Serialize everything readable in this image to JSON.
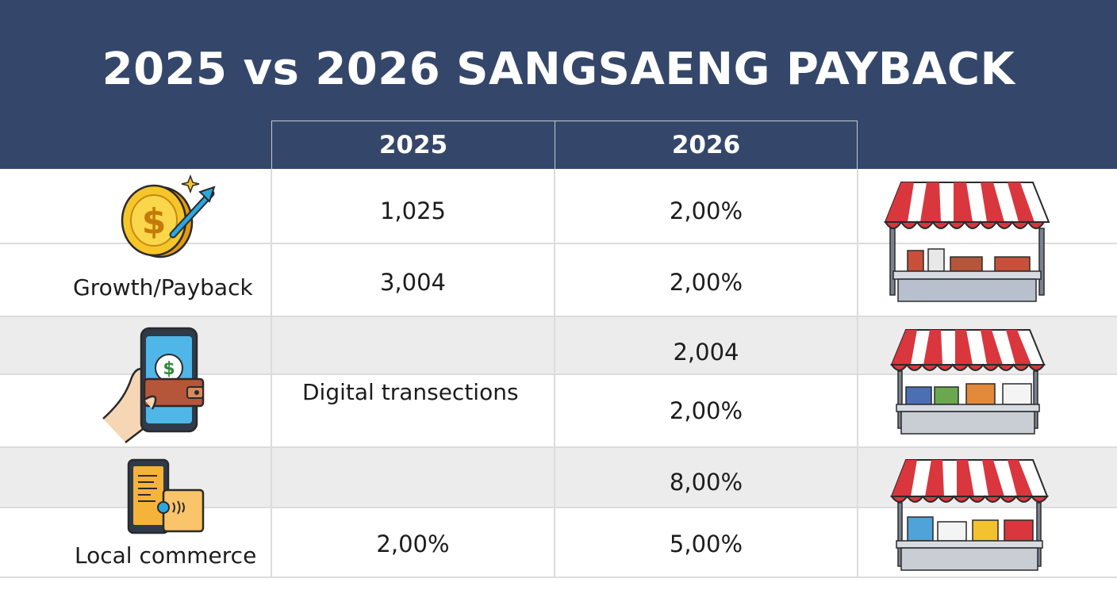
{
  "title": "2025 vs 2026 SANGSAENG PAYBACK",
  "columns": {
    "col_2025": "2025",
    "col_2026": "2026"
  },
  "rows": [
    {
      "label": "Growth/Payback",
      "icon": "coin-growth-icon",
      "values_2025": [
        "1,025",
        "3,004"
      ],
      "values_2026": [
        "2,00%",
        "2,00%"
      ]
    },
    {
      "label": "Digital transections",
      "icon": "mobile-wallet-icon",
      "values_2026": [
        "2,004",
        "2,00%"
      ]
    },
    {
      "label": "Local commerce",
      "icon": "pos-terminal-icon",
      "values_2025": [
        "2,00%"
      ],
      "values_2026": [
        "8,00%",
        "5,00%"
      ]
    }
  ],
  "decorations": {
    "right_column_icon": "market-stall-icon"
  },
  "colors": {
    "header": "#34476a",
    "band_gray": "#ececec",
    "awning_red": "#d9363e"
  }
}
